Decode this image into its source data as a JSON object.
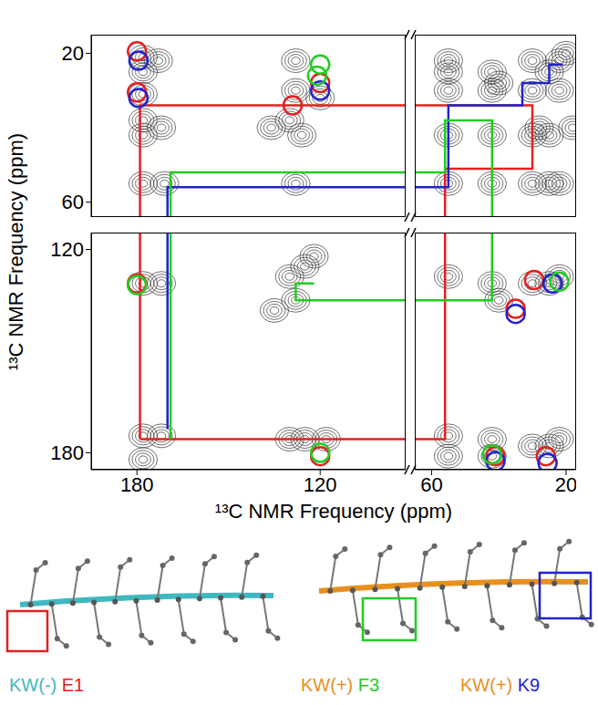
{
  "chart_data": {
    "type": "scatter",
    "xlabel": "¹³C NMR Frequency (ppm)",
    "ylabel": "¹³C NMR Frequency (ppm)",
    "panels": [
      {
        "xlim": [
          195,
          92
        ],
        "ylim": [
          15,
          64
        ],
        "yticks": [
          20,
          60
        ]
      },
      {
        "xlim": [
          65,
          17
        ],
        "ylim": [
          15,
          64
        ]
      },
      {
        "xlim": [
          195,
          92
        ],
        "ylim": [
          115,
          185
        ],
        "xticks": [
          180,
          120
        ],
        "yticks": [
          120,
          180
        ]
      },
      {
        "xlim": [
          65,
          17
        ],
        "ylim": [
          115,
          185
        ],
        "xticks": [
          60,
          20
        ]
      }
    ],
    "series": [
      {
        "type": "contour",
        "color": "#333333",
        "points": [
          [
            178,
            21
          ],
          [
            178,
            25
          ],
          [
            178,
            31
          ],
          [
            178,
            38
          ],
          [
            178,
            42
          ],
          [
            178,
            55
          ],
          [
            172,
            40
          ],
          [
            171,
            55
          ],
          [
            173,
            22
          ],
          [
            128,
            22
          ],
          [
            128,
            30
          ],
          [
            130,
            38
          ],
          [
            126,
            42
          ],
          [
            128,
            55
          ],
          [
            120,
            32
          ],
          [
            136,
            40
          ],
          [
            55,
            55
          ],
          [
            42,
            42
          ],
          [
            30,
            30
          ],
          [
            25,
            25
          ],
          [
            22,
            22
          ],
          [
            55,
            30
          ],
          [
            55,
            25
          ],
          [
            55,
            22
          ],
          [
            55,
            42
          ],
          [
            42,
            55
          ],
          [
            30,
            55
          ],
          [
            25,
            55
          ],
          [
            22,
            55
          ],
          [
            42,
            30
          ],
          [
            30,
            42
          ],
          [
            42,
            25
          ],
          [
            25,
            42
          ],
          [
            30,
            22
          ],
          [
            22,
            30
          ],
          [
            28,
            40
          ],
          [
            40,
            28
          ],
          [
            20,
            20
          ],
          [
            18,
            40
          ],
          [
            178,
            130
          ],
          [
            178,
            175
          ],
          [
            178,
            182
          ],
          [
            172,
            130
          ],
          [
            172,
            175
          ],
          [
            130,
            128
          ],
          [
            128,
            135
          ],
          [
            125,
            125
          ],
          [
            122,
            122
          ],
          [
            135,
            138
          ],
          [
            130,
            176
          ],
          [
            125,
            176
          ],
          [
            118,
            176
          ],
          [
            55,
            128
          ],
          [
            42,
            130
          ],
          [
            40,
            135
          ],
          [
            30,
            130
          ],
          [
            25,
            130
          ],
          [
            22,
            128
          ],
          [
            55,
            175
          ],
          [
            42,
            176
          ],
          [
            30,
            178
          ],
          [
            25,
            178
          ],
          [
            22,
            176
          ],
          [
            55,
            181
          ],
          [
            42,
            181
          ]
        ]
      },
      {
        "type": "line",
        "color": "#e32020",
        "points": [
          [
            179,
            176
          ],
          [
            179,
            34
          ],
          [
            30,
            34
          ],
          [
            30,
            51
          ],
          [
            56,
            51
          ],
          [
            56,
            176
          ],
          [
            179,
            176
          ]
        ]
      },
      {
        "type": "line",
        "color": "#2222cc",
        "points": [
          [
            170,
            173
          ],
          [
            170,
            56
          ],
          [
            55,
            56
          ],
          [
            55,
            34
          ],
          [
            33,
            34
          ],
          [
            33,
            28
          ],
          [
            25,
            28
          ],
          [
            25,
            23
          ],
          [
            21,
            23
          ]
        ]
      },
      {
        "type": "line",
        "color": "#22cc22",
        "points": [
          [
            169,
            176
          ],
          [
            169,
            52
          ],
          [
            56,
            52
          ],
          [
            56,
            38
          ],
          [
            42,
            38
          ],
          [
            42,
            135
          ],
          [
            128,
            135
          ],
          [
            128,
            130
          ],
          [
            122,
            130
          ]
        ]
      },
      {
        "type": "scatter",
        "marker": "open_circle",
        "color": "#e32020",
        "points": [
          [
            180,
            19.5
          ],
          [
            180,
            30.5
          ],
          [
            129,
            34
          ],
          [
            120,
            28
          ],
          [
            180,
            130
          ],
          [
            120,
            181
          ],
          [
            29.5,
            129
          ],
          [
            35,
            137.5
          ],
          [
            41,
            181
          ],
          [
            26,
            181
          ]
        ]
      },
      {
        "type": "scatter",
        "marker": "open_circle",
        "color": "#2222cc",
        "points": [
          [
            179.5,
            22
          ],
          [
            179.5,
            32
          ],
          [
            120,
            30
          ],
          [
            24,
            130
          ],
          [
            35,
            139
          ],
          [
            41,
            182.5
          ],
          [
            25.5,
            183
          ]
        ]
      },
      {
        "type": "scatter",
        "marker": "open_circle",
        "color": "#22cc22",
        "points": [
          [
            120,
            23
          ],
          [
            121,
            26
          ],
          [
            180,
            130.5
          ],
          [
            22,
            129.5
          ],
          [
            120,
            180
          ],
          [
            42,
            180.5
          ]
        ]
      }
    ]
  },
  "structures": [
    {
      "label": "KW(-)",
      "label_color": "#3fb8c0",
      "residue": "E1",
      "residue_color": "#e32020"
    },
    {
      "label": "KW(+)",
      "label_color": "#e8901e",
      "residue": "F3",
      "residue_color": "#22cc22"
    },
    {
      "label": "KW(+)",
      "label_color": "#e8901e",
      "residue": "K9",
      "residue_color": "#2222cc"
    }
  ]
}
